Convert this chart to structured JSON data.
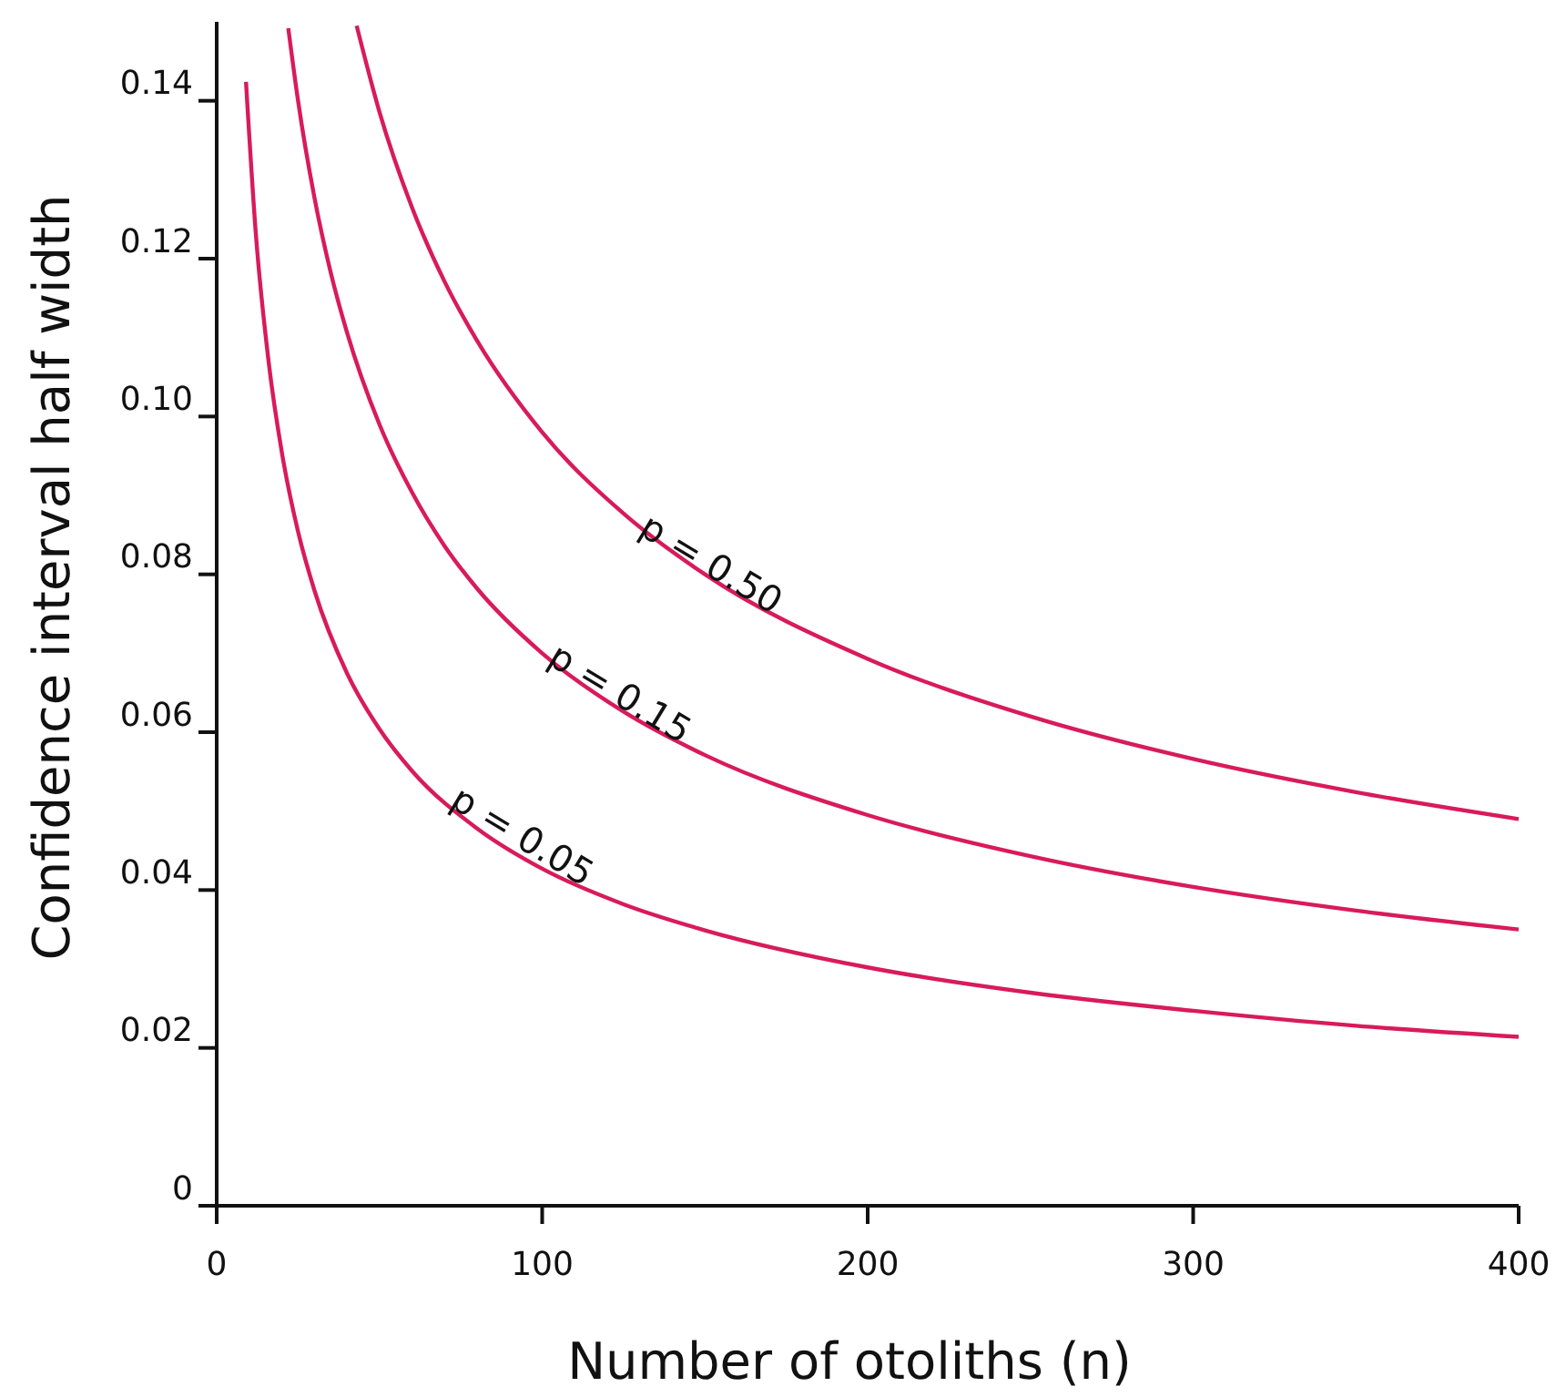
{
  "chart_data": {
    "type": "line",
    "xlabel": "Number of otoliths (n)",
    "ylabel": "Confidence interval half width",
    "xlim": [
      0,
      400
    ],
    "xticks": [
      0,
      100,
      200,
      300,
      400
    ],
    "ylim": [
      0,
      0.15
    ],
    "yticks": [
      0,
      {
        "value": 0.02,
        "label": "0.02"
      },
      {
        "value": 0.04,
        "label": "0.04"
      },
      {
        "value": 0.06,
        "label": "0.06"
      },
      {
        "value": 0.08,
        "label": "0.08"
      },
      {
        "value": 0.1,
        "label": "0.10"
      },
      {
        "value": 0.12,
        "label": "0.12"
      },
      {
        "value": 0.14,
        "label": "0.14"
      }
    ],
    "grid": false,
    "marker": "none",
    "line_style": "solid",
    "series": [
      {
        "color": "#d81b5a",
        "x": [
          9,
          12,
          16,
          20,
          25,
          30,
          40,
          50,
          60,
          80,
          100,
          125,
          150,
          200,
          250,
          300,
          350,
          400
        ],
        "values": [
          0.1424,
          0.1233,
          0.1068,
          0.0955,
          0.0854,
          0.078,
          0.0675,
          0.0604,
          0.0551,
          0.0478,
          0.0427,
          0.0382,
          0.0349,
          0.0302,
          0.027,
          0.0247,
          0.0228,
          0.0214
        ]
      },
      {
        "color": "#d81b5a",
        "x": [
          22,
          25,
          30,
          35,
          40,
          50,
          60,
          70,
          80,
          100,
          125,
          150,
          200,
          250,
          300,
          350,
          400
        ],
        "values": [
          0.1492,
          0.14,
          0.1278,
          0.1183,
          0.1107,
          0.099,
          0.0904,
          0.0836,
          0.0782,
          0.07,
          0.0626,
          0.0571,
          0.0495,
          0.0443,
          0.0404,
          0.0374,
          0.035
        ]
      },
      {
        "color": "#d81b5a",
        "x": [
          43,
          50,
          60,
          70,
          80,
          100,
          125,
          150,
          200,
          250,
          300,
          350,
          400
        ],
        "values": [
          0.1495,
          0.1386,
          0.1265,
          0.1171,
          0.1096,
          0.098,
          0.0877,
          0.08,
          0.0693,
          0.062,
          0.0566,
          0.0524,
          0.049
        ]
      }
    ],
    "annotations": [
      {
        "text": "p = 0.50",
        "x": 150,
        "y": 0.08
      },
      {
        "text": "p = 0.15",
        "x": 122,
        "y": 0.0636
      },
      {
        "text": "p = 0.05",
        "x": 92,
        "y": 0.0455
      }
    ]
  }
}
